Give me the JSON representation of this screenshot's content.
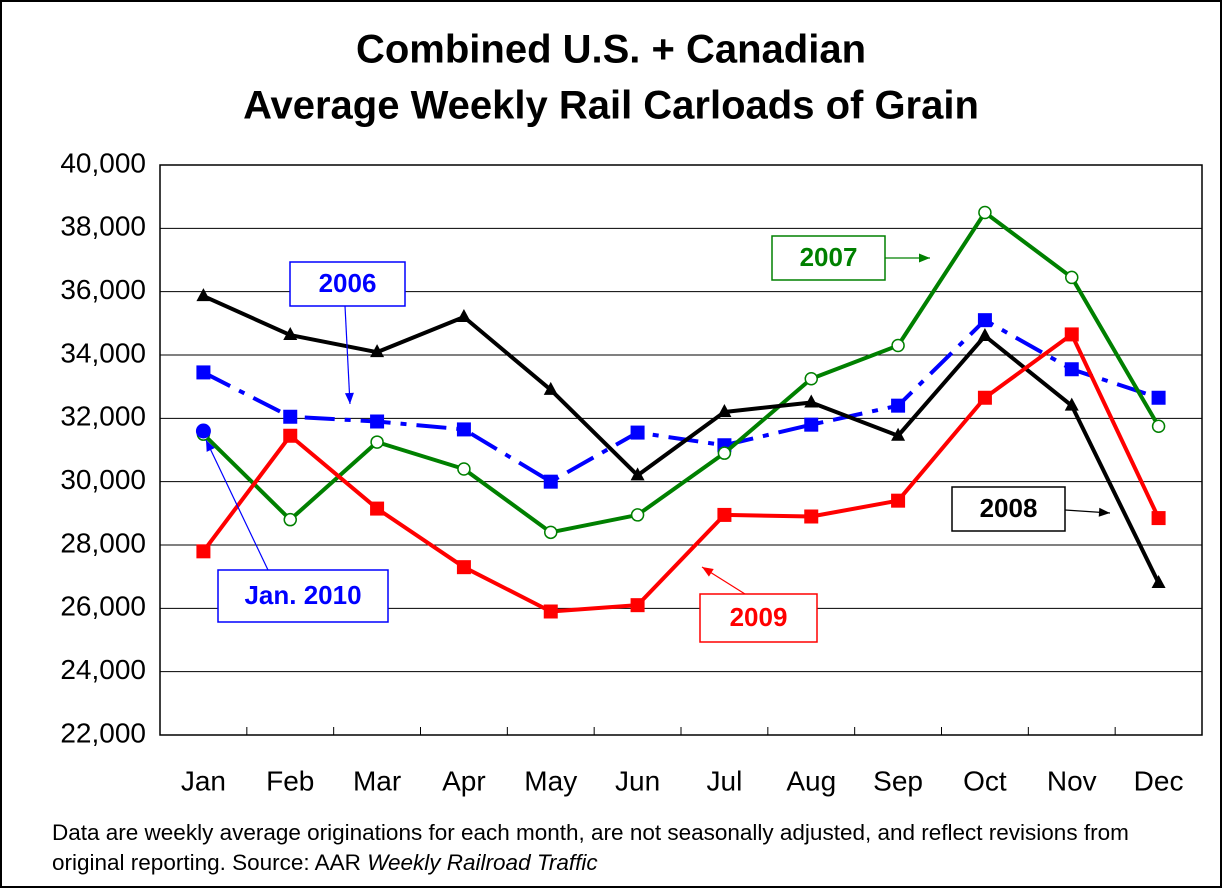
{
  "chart_data": {
    "type": "line",
    "title": [
      "Combined U.S. + Canadian",
      "Average Weekly Rail Carloads of Grain"
    ],
    "categories": [
      "Jan",
      "Feb",
      "Mar",
      "Apr",
      "May",
      "Jun",
      "Jul",
      "Aug",
      "Sep",
      "Oct",
      "Nov",
      "Dec"
    ],
    "ylim": [
      22000,
      40000
    ],
    "yticks": [
      {
        "value": 22000,
        "label": "22,000"
      },
      {
        "value": 24000,
        "label": "24,000"
      },
      {
        "value": 26000,
        "label": "26,000"
      },
      {
        "value": 28000,
        "label": "28,000"
      },
      {
        "value": 30000,
        "label": "30,000"
      },
      {
        "value": 32000,
        "label": "32,000"
      },
      {
        "value": 34000,
        "label": "34,000"
      },
      {
        "value": 36000,
        "label": "36,000"
      },
      {
        "value": 38000,
        "label": "38,000"
      },
      {
        "value": 40000,
        "label": "40,000"
      }
    ],
    "grid": true,
    "series": [
      {
        "name": "2006",
        "color": "#0000ff",
        "marker": "square",
        "dashed": true,
        "values": [
          33450,
          32050,
          31900,
          31650,
          30000,
          31550,
          31150,
          31800,
          32400,
          35100,
          33550,
          32650
        ]
      },
      {
        "name": "2007",
        "color": "#008000",
        "marker": "open-circle",
        "dashed": false,
        "values": [
          31500,
          28800,
          31250,
          30400,
          28400,
          28950,
          30900,
          33250,
          34300,
          38500,
          36450,
          31750
        ]
      },
      {
        "name": "2008",
        "color": "#000000",
        "marker": "triangle",
        "dashed": false,
        "values": [
          35860,
          34630,
          34090,
          35200,
          32900,
          30200,
          32200,
          32500,
          31450,
          34600,
          32400,
          26800
        ]
      },
      {
        "name": "2009",
        "color": "#ff0000",
        "marker": "square",
        "dashed": false,
        "values": [
          27800,
          31450,
          29150,
          27300,
          25900,
          26100,
          28950,
          28900,
          29400,
          32650,
          34650,
          28850
        ]
      },
      {
        "name": "Jan. 2010",
        "color": "#0000ff",
        "marker": "circle",
        "dashed": false,
        "values": [
          31600,
          null,
          null,
          null,
          null,
          null,
          null,
          null,
          null,
          null,
          null,
          null
        ]
      }
    ],
    "note": "Data are weekly average originations for each month, are not seasonally adjusted, and reflect revisions from original reporting.  Source: AAR",
    "note_italic": "Weekly Railroad Traffic"
  }
}
